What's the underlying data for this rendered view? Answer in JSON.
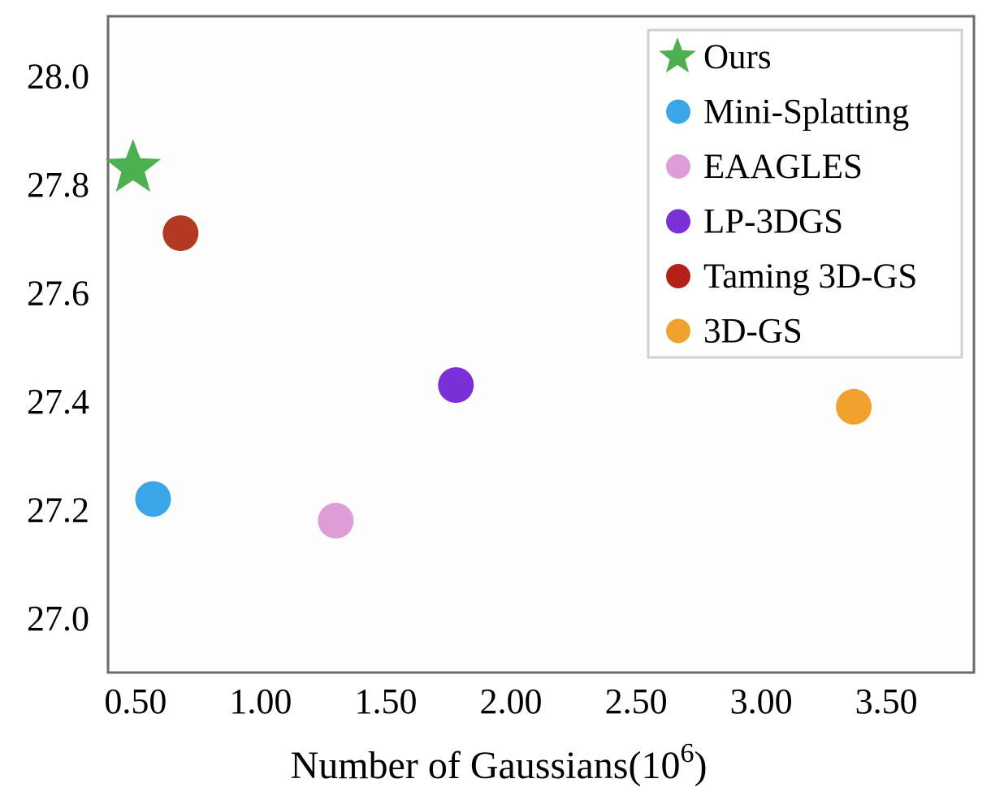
{
  "chart_data": {
    "type": "scatter",
    "title": "",
    "xlabel": "Number of Gaussians(10",
    "xlabel_sup": "6",
    "xlabel_close": ")",
    "ylabel": "",
    "xlim": [
      0.39,
      3.85
    ],
    "ylim": [
      26.9,
      28.11
    ],
    "x_ticks": [
      0.5,
      1.0,
      1.5,
      2.0,
      2.5,
      3.0,
      3.5
    ],
    "x_tick_labels": [
      "0.50",
      "1.00",
      "1.50",
      "2.00",
      "2.50",
      "3.00",
      "3.50"
    ],
    "y_ticks": [
      27.0,
      27.2,
      27.4,
      27.6,
      27.8,
      28.0
    ],
    "y_tick_labels": [
      "27.0",
      "27.2",
      "27.4",
      "27.6",
      "27.8",
      "28.0"
    ],
    "grid": false,
    "legend_position": "top-right",
    "series": [
      {
        "name": "Ours",
        "color": "#4caf50",
        "marker": "star",
        "x": 0.49,
        "y": 27.83
      },
      {
        "name": "Mini-Splatting",
        "color": "#3aa6e8",
        "marker": "circle",
        "x": 0.57,
        "y": 27.22
      },
      {
        "name": "EAAGLES",
        "color": "#dd9ed8",
        "marker": "circle",
        "x": 1.3,
        "y": 27.18
      },
      {
        "name": "LP-3DGS",
        "color": "#7b2fd6",
        "marker": "circle",
        "x": 1.78,
        "y": 27.43
      },
      {
        "name": "Taming 3D-GS",
        "color": "#b23a22",
        "legend_color": "#b52118",
        "marker": "circle",
        "x": 0.68,
        "y": 27.71
      },
      {
        "name": "3D-GS",
        "color": "#f0a12e",
        "marker": "circle",
        "x": 3.37,
        "y": 27.39
      }
    ]
  }
}
